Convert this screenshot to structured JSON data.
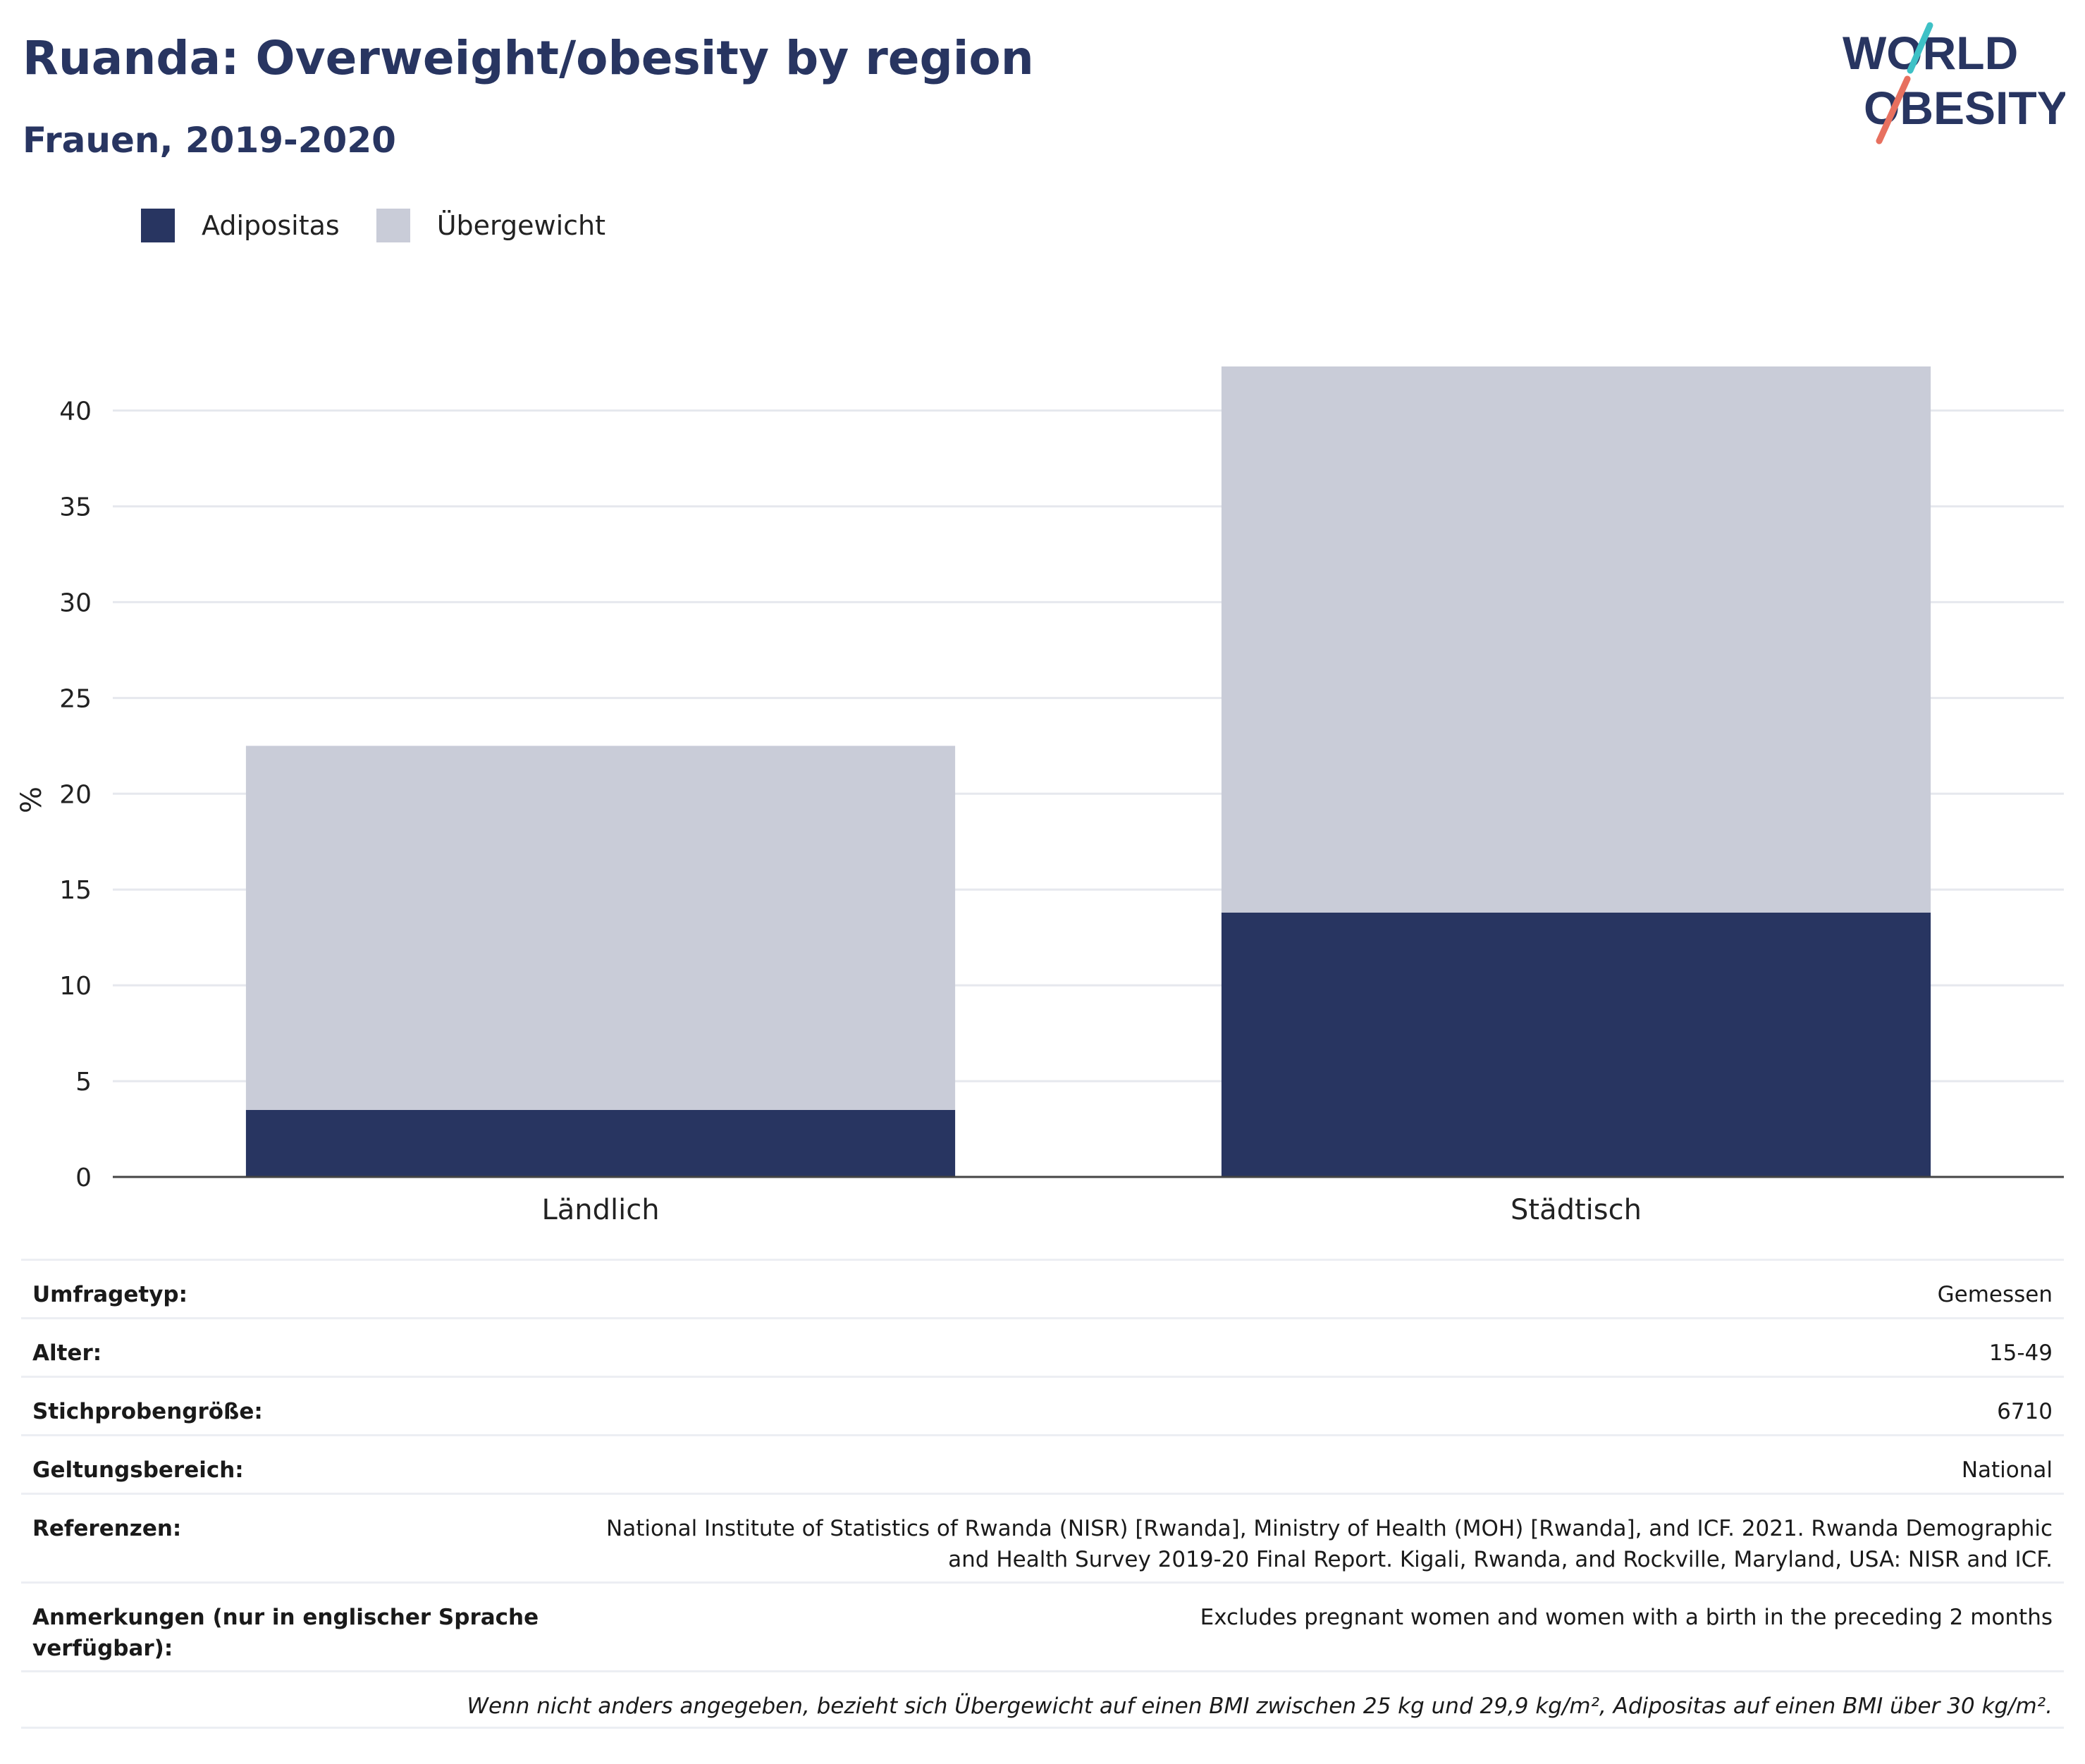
{
  "title": "Ruanda: Overweight/obesity by region",
  "subtitle": "Frauen, 2019-2020",
  "logo": {
    "line1": "WORLD",
    "line2": "OBESITY",
    "accent_colors": [
      "#3ec1c6",
      "#e7705f"
    ],
    "text_color": "#283561"
  },
  "legend": [
    {
      "label": "Adipositas",
      "color": "#283561"
    },
    {
      "label": "Übergewicht",
      "color": "#c9ccd8"
    }
  ],
  "chart_data": {
    "type": "bar",
    "stacked": true,
    "categories": [
      "Ländlich",
      "Städtisch"
    ],
    "series": [
      {
        "name": "Adipositas",
        "color": "#283561",
        "values": [
          3.5,
          13.8
        ]
      },
      {
        "name": "Übergewicht",
        "color": "#c9ccd8",
        "values": [
          19.0,
          28.5
        ]
      }
    ],
    "ylabel": "%",
    "ylim": [
      0,
      42.3
    ],
    "yticks": [
      0,
      5,
      10,
      15,
      20,
      25,
      30,
      35,
      40
    ],
    "grid": true,
    "legend_position": "top-left"
  },
  "meta": [
    {
      "key": "Umfragetyp:",
      "value": "Gemessen"
    },
    {
      "key": "Alter:",
      "value": "15-49"
    },
    {
      "key": "Stichprobengröße:",
      "value": "6710"
    },
    {
      "key": "Geltungsbereich:",
      "value": "National"
    },
    {
      "key": "Referenzen:",
      "value_lines": [
        "National Institute of Statistics of Rwanda (NISR) [Rwanda], Ministry of Health (MOH) [Rwanda], and ICF. 2021. Rwanda Demographic",
        "and Health Survey 2019-20 Final Report. Kigali, Rwanda, and Rockville, Maryland, USA: NISR and ICF."
      ]
    },
    {
      "key_lines": [
        "Anmerkungen (nur in englischer Sprache",
        "verfügbar):"
      ],
      "value": "Excludes pregnant women and women with a birth in the preceding 2 months"
    }
  ],
  "footnote": "Wenn nicht anders angegeben, bezieht sich Übergewicht auf einen BMI zwischen 25 kg und 29,9 kg/m², Adipositas auf einen BMI über 30 kg/m²."
}
